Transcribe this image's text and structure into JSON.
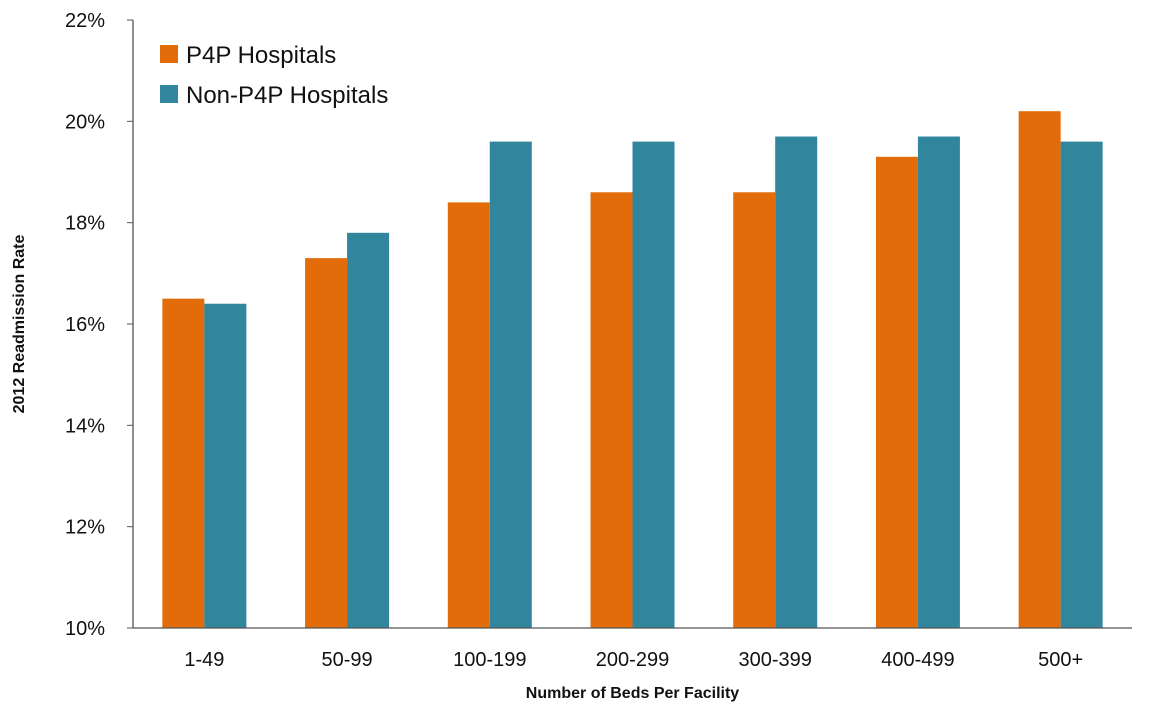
{
  "chart_data": {
    "type": "bar",
    "title": "",
    "xlabel": "Number of Beds Per Facility",
    "ylabel": "2012 Readmission Rate",
    "categories": [
      "1-49",
      "50-99",
      "100-199",
      "200-299",
      "300-399",
      "400-499",
      "500+"
    ],
    "series": [
      {
        "name": "P4P Hospitals",
        "color": "#E36C0A",
        "values": [
          16.5,
          17.3,
          18.4,
          18.6,
          18.6,
          19.3,
          20.2
        ]
      },
      {
        "name": "Non-P4P Hospitals",
        "color": "#31859C",
        "values": [
          16.4,
          17.8,
          19.6,
          19.6,
          19.7,
          19.7,
          19.6
        ]
      }
    ],
    "ylim": [
      10,
      22
    ],
    "yticks": [
      10,
      12,
      14,
      16,
      18,
      20,
      22
    ],
    "ytick_labels": [
      "10%",
      "12%",
      "14%",
      "16%",
      "18%",
      "20%",
      "22%"
    ],
    "grid": false,
    "legend_position": "top-left"
  }
}
